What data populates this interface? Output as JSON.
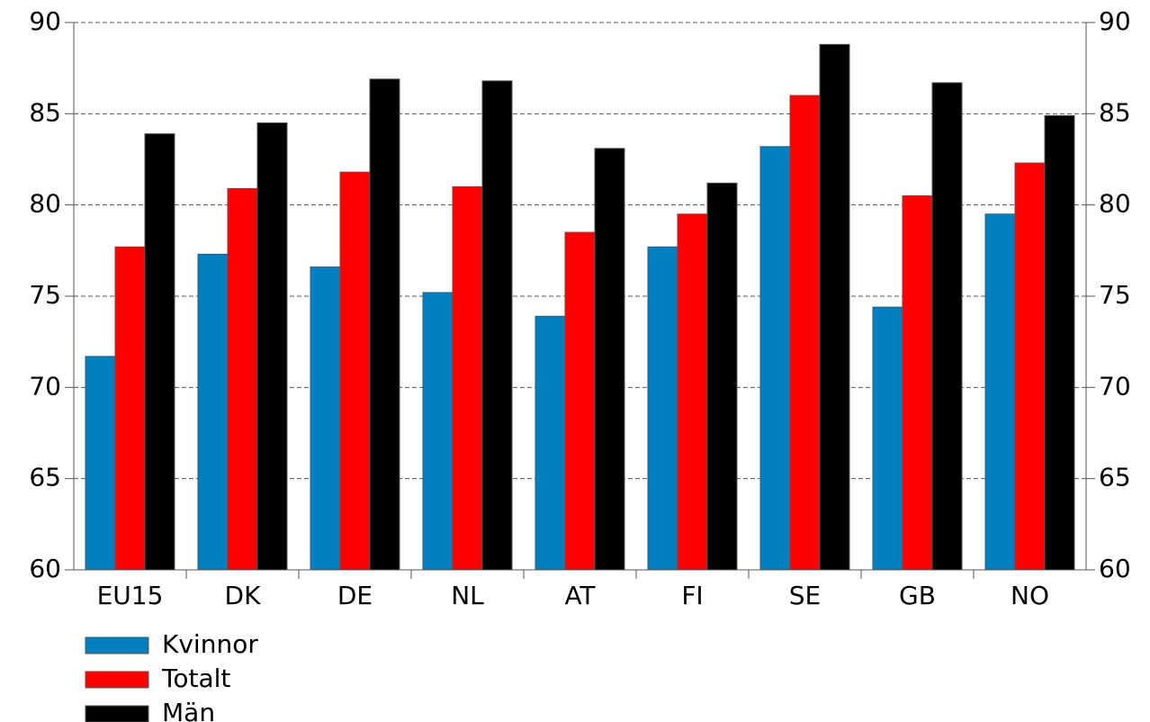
{
  "chart_data": {
    "type": "bar",
    "categories": [
      "EU15",
      "DK",
      "DE",
      "NL",
      "AT",
      "FI",
      "SE",
      "GB",
      "NO"
    ],
    "series": [
      {
        "name": "Kvinnor",
        "color": "#0080c0",
        "values": [
          71.7,
          77.3,
          76.6,
          75.2,
          73.9,
          77.7,
          83.2,
          74.4,
          79.5
        ]
      },
      {
        "name": "Totalt",
        "color": "#ff0000",
        "values": [
          77.7,
          80.9,
          81.8,
          81.0,
          78.5,
          79.5,
          86.0,
          80.5,
          82.3
        ]
      },
      {
        "name": "Män",
        "color": "#000000",
        "values": [
          83.9,
          84.5,
          86.9,
          86.8,
          83.1,
          81.2,
          88.8,
          86.7,
          84.9
        ]
      }
    ],
    "ylim": [
      60,
      90
    ],
    "yticks": [
      60,
      65,
      70,
      75,
      80,
      85,
      90
    ],
    "y2lim": [
      60,
      90
    ],
    "y2ticks": [
      60,
      65,
      70,
      75,
      80,
      85,
      90
    ],
    "grid": true,
    "legend": "bottom-left"
  }
}
